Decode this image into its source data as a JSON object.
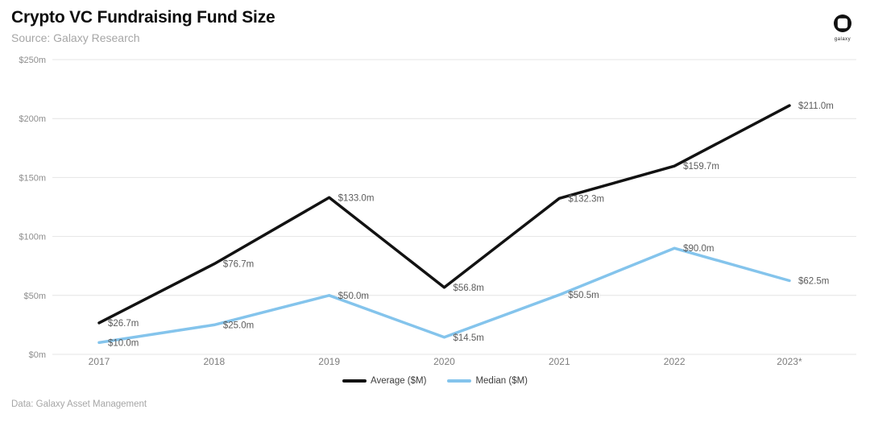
{
  "header": {
    "title": "Crypto VC Fundraising Fund Size",
    "subtitle": "Source: Galaxy Research",
    "logo_text": "galaxy"
  },
  "footer": {
    "note": "Data: Galaxy Asset Management"
  },
  "chart_data": {
    "type": "line",
    "title": "Crypto VC Fundraising Fund Size",
    "categories": [
      "2017",
      "2018",
      "2019",
      "2020",
      "2021",
      "2022",
      "2023*"
    ],
    "series": [
      {
        "name": "Average ($M)",
        "color": "#121212",
        "values": [
          26.7,
          76.7,
          133.0,
          56.8,
          132.3,
          159.7,
          211.0
        ],
        "labels": [
          "$26.7m",
          "$76.7m",
          "$133.0m",
          "$56.8m",
          "$132.3m",
          "$159.7m",
          "$211.0m"
        ]
      },
      {
        "name": "Median ($M)",
        "color": "#84c4ec",
        "values": [
          10.0,
          25.0,
          50.0,
          14.5,
          50.5,
          90.0,
          62.5
        ],
        "labels": [
          "$10.0m",
          "$25.0m",
          "$50.0m",
          "$14.5m",
          "$50.5m",
          "$90.0m",
          "$62.5m"
        ]
      }
    ],
    "y_ticks": [
      "$0m",
      "$50m",
      "$100m",
      "$150m",
      "$200m",
      "$250m"
    ],
    "y_tick_values": [
      0,
      50,
      100,
      150,
      200,
      250
    ],
    "ylim": [
      0,
      250
    ],
    "xlabel": "",
    "ylabel": "",
    "grid": true,
    "legend_position": "bottom"
  }
}
